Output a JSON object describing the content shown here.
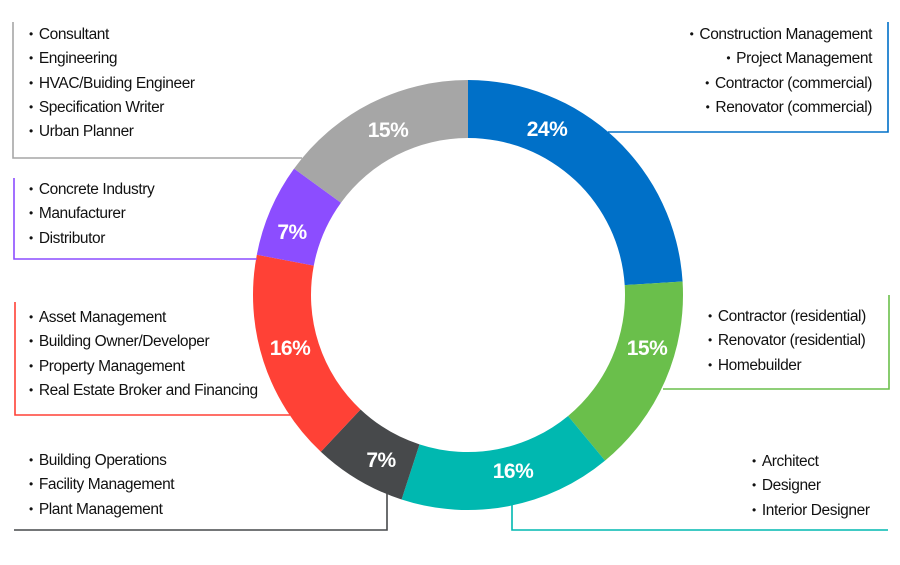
{
  "chart_data": {
    "type": "pie",
    "donut": true,
    "segments": [
      {
        "value": 24,
        "label": "24%",
        "color": "#0070c8",
        "items": [
          "Construction Management",
          "Project Management",
          "Contractor (commercial)",
          "Renovator (commercial)"
        ]
      },
      {
        "value": 15,
        "label": "15%",
        "color": "#6abf4b",
        "items": [
          "Contractor (residential)",
          "Renovator (residential)",
          "Homebuilder"
        ]
      },
      {
        "value": 16,
        "label": "16%",
        "color": "#00b8b0",
        "items": [
          "Architect",
          "Designer",
          "Interior Designer"
        ]
      },
      {
        "value": 7,
        "label": "7%",
        "color": "#47494b",
        "items": [
          "Building Operations",
          "Facility Management",
          "Plant Management"
        ]
      },
      {
        "value": 16,
        "label": "16%",
        "color": "#ff4136",
        "items": [
          "Asset Management",
          "Building Owner/Developer",
          "Property Management",
          "Real Estate Broker and Financing"
        ]
      },
      {
        "value": 7,
        "label": "7%",
        "color": "#8c4dff",
        "items": [
          "Concrete Industry",
          "Manufacturer",
          "Distributor"
        ]
      },
      {
        "value": 15,
        "label": "15%",
        "color": "#a6a6a6",
        "items": [
          "Consultant",
          "Engineering",
          "HVAC/Buiding Engineer",
          "Specification Writer",
          "Urban Planner"
        ]
      }
    ]
  }
}
